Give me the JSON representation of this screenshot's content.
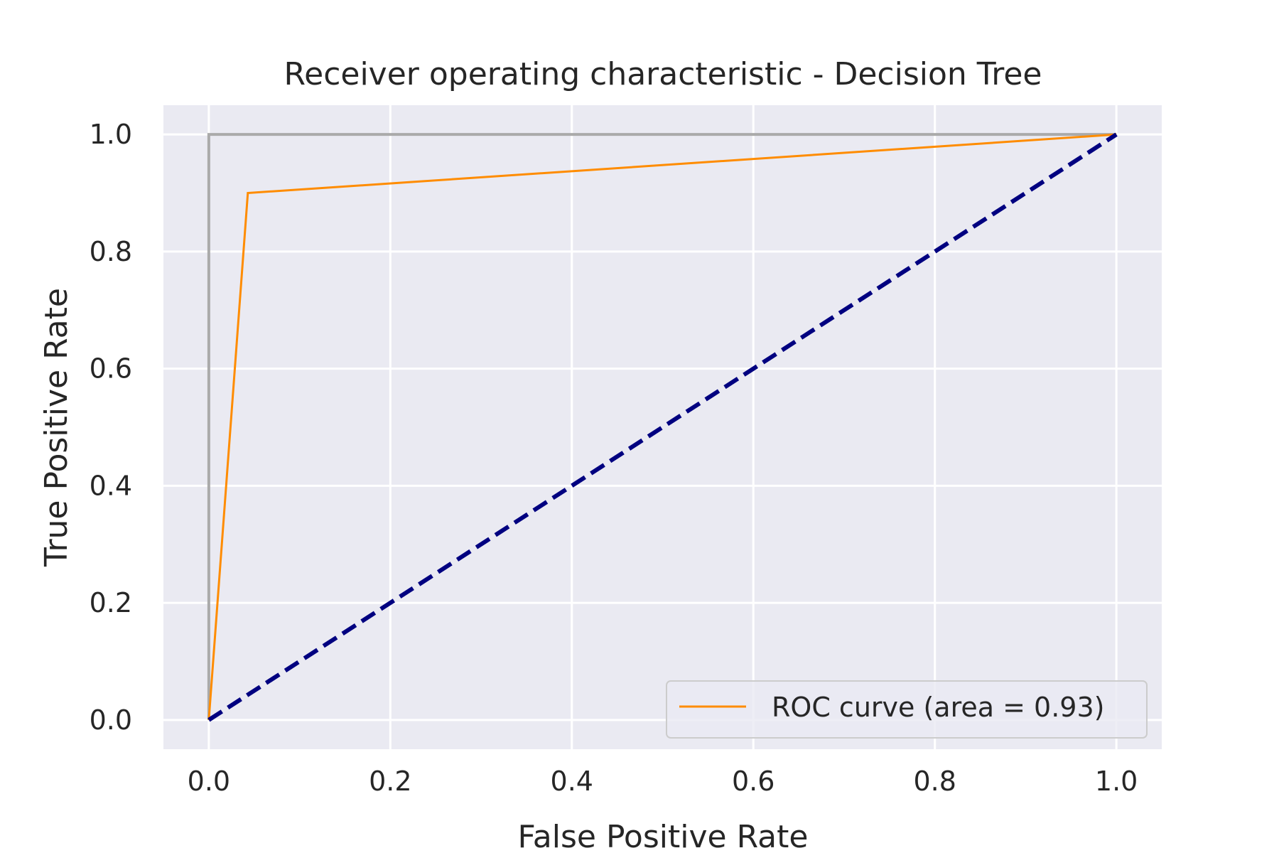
{
  "chart_data": {
    "type": "line",
    "title": "Receiver operating characteristic - Decision Tree",
    "xlabel": "False Positive Rate",
    "ylabel": "True Positive Rate",
    "xlim": [
      -0.05,
      1.05
    ],
    "ylim": [
      -0.05,
      1.05
    ],
    "xticks": [
      0.0,
      0.2,
      0.4,
      0.6,
      0.8,
      1.0
    ],
    "yticks": [
      0.0,
      0.2,
      0.4,
      0.6,
      0.8,
      1.0
    ],
    "xtick_labels": [
      "0.0",
      "0.2",
      "0.4",
      "0.6",
      "0.8",
      "1.0"
    ],
    "ytick_labels": [
      "0.0",
      "0.2",
      "0.4",
      "0.6",
      "0.8",
      "1.0"
    ],
    "grid": true,
    "legend_position": "lower-right",
    "series": [
      {
        "name": "ROC curve (area = 0.93)",
        "color": "#ff8c00",
        "style": "solid",
        "x": [
          0.0,
          0.043,
          1.0
        ],
        "y": [
          0.0,
          0.9,
          1.0
        ],
        "in_legend": true
      },
      {
        "color": "#000080",
        "style": "dashed",
        "x": [
          0.0,
          1.0
        ],
        "y": [
          0.0,
          1.0
        ],
        "in_legend": false
      },
      {
        "color": "#aaaaaa",
        "style": "solid",
        "x": [
          0.0,
          0.0,
          1.0
        ],
        "y": [
          0.0,
          1.0,
          1.0
        ],
        "in_legend": false
      }
    ],
    "colors": {
      "plot_background": "#eaeaf2",
      "grid": "#ffffff",
      "text": "#262626"
    }
  }
}
